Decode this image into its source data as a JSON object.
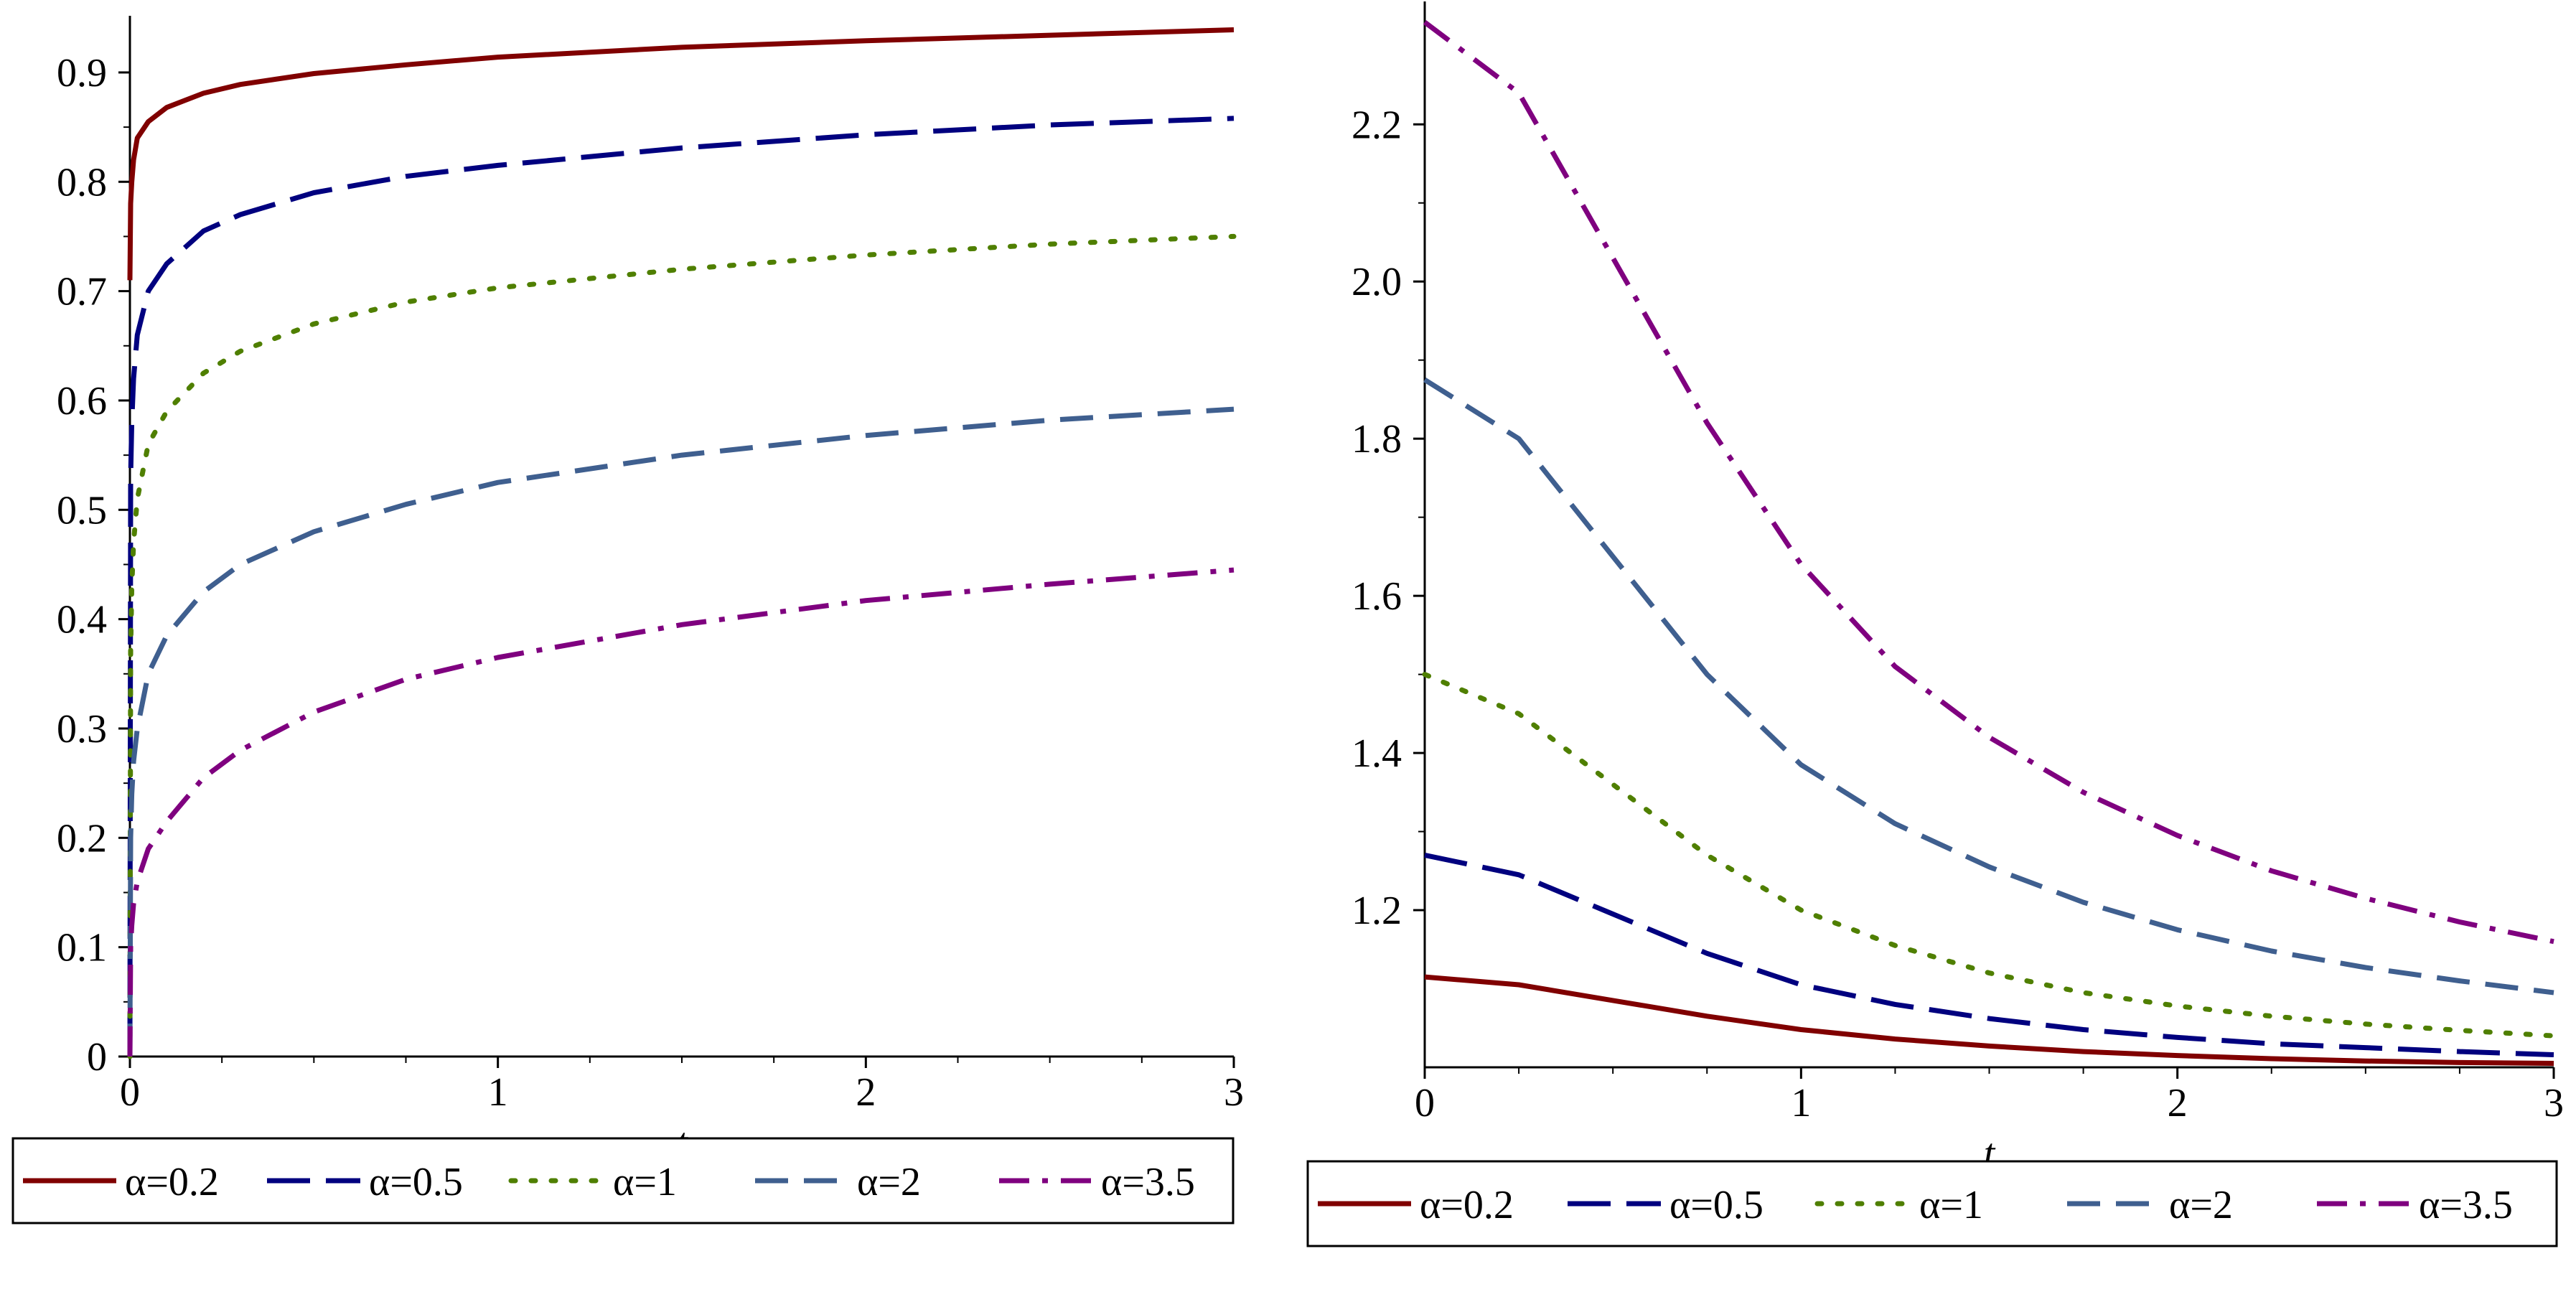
{
  "chart_data": [
    {
      "type": "line",
      "title": "",
      "xlabel": "t",
      "ylabel": "",
      "xlim": [
        0,
        3
      ],
      "ylim": [
        0,
        0.94
      ],
      "x_ticks": [
        0,
        1,
        2,
        3
      ],
      "x_tick_labels": [
        "0",
        "1",
        "2",
        "3"
      ],
      "y_ticks": [
        0,
        0.1,
        0.2,
        0.3,
        0.4,
        0.5,
        0.6,
        0.7,
        0.8,
        0.9
      ],
      "y_tick_labels": [
        "0",
        "0.1",
        "0.2",
        "0.3",
        "0.4",
        "0.5",
        "0.6",
        "0.7",
        "0.8",
        "0.9"
      ],
      "x": [
        0,
        0.002,
        0.005,
        0.01,
        0.02,
        0.05,
        0.1,
        0.2,
        0.3,
        0.5,
        0.75,
        1,
        1.5,
        2,
        2.5,
        3
      ],
      "series": [
        {
          "name": "α=0.2",
          "color": "#800000",
          "dash": "solid",
          "values": [
            0.71,
            0.78,
            0.8,
            0.82,
            0.84,
            0.855,
            0.868,
            0.881,
            0.889,
            0.899,
            0.907,
            0.914,
            0.923,
            0.929,
            0.934,
            0.939
          ]
        },
        {
          "name": "α=0.5",
          "color": "#00007f",
          "dash": "longdash",
          "values": [
            0.0,
            0.53,
            0.58,
            0.62,
            0.66,
            0.7,
            0.725,
            0.755,
            0.77,
            0.79,
            0.805,
            0.815,
            0.831,
            0.843,
            0.852,
            0.858
          ]
        },
        {
          "name": "α=1",
          "color": "#4f7f00",
          "dash": "dot",
          "values": [
            0.0,
            0.37,
            0.43,
            0.47,
            0.51,
            0.56,
            0.59,
            0.625,
            0.645,
            0.67,
            0.69,
            0.703,
            0.72,
            0.733,
            0.743,
            0.75
          ]
        },
        {
          "name": "α=2",
          "color": "#3f5f8f",
          "dash": "dash",
          "values": [
            0.0,
            0.2,
            0.24,
            0.27,
            0.3,
            0.35,
            0.385,
            0.425,
            0.45,
            0.48,
            0.505,
            0.525,
            0.55,
            0.568,
            0.582,
            0.592
          ]
        },
        {
          "name": "α=3.5",
          "color": "#7f007f",
          "dash": "dashdot",
          "values": [
            0.0,
            0.1,
            0.12,
            0.14,
            0.16,
            0.19,
            0.215,
            0.255,
            0.28,
            0.315,
            0.345,
            0.365,
            0.395,
            0.417,
            0.432,
            0.445
          ]
        }
      ],
      "legend": "bottom"
    },
    {
      "type": "line",
      "title": "",
      "xlabel": "t",
      "ylabel": "",
      "xlim": [
        0,
        3
      ],
      "ylim": [
        1.0,
        2.34
      ],
      "x_ticks": [
        0,
        1,
        2,
        3
      ],
      "x_tick_labels": [
        "0",
        "1",
        "2",
        "3"
      ],
      "y_ticks": [
        1.2,
        1.4,
        1.6,
        1.8,
        2.0,
        2.2
      ],
      "y_tick_labels": [
        "1.2",
        "1.4",
        "1.6",
        "1.8",
        "2.0",
        "2.2"
      ],
      "x": [
        0,
        0.25,
        0.5,
        0.75,
        1,
        1.25,
        1.5,
        1.75,
        2,
        2.25,
        2.5,
        2.75,
        3
      ],
      "series": [
        {
          "name": "α=0.2",
          "color": "#800000",
          "dash": "solid",
          "values": [
            1.115,
            1.105,
            1.085,
            1.065,
            1.048,
            1.036,
            1.027,
            1.02,
            1.015,
            1.011,
            1.008,
            1.006,
            1.005
          ]
        },
        {
          "name": "α=0.5",
          "color": "#00007f",
          "dash": "longdash",
          "values": [
            1.27,
            1.245,
            1.195,
            1.145,
            1.105,
            1.08,
            1.062,
            1.048,
            1.038,
            1.03,
            1.025,
            1.02,
            1.016
          ]
        },
        {
          "name": "α=1",
          "color": "#4f7f00",
          "dash": "dot",
          "values": [
            1.5,
            1.45,
            1.36,
            1.27,
            1.2,
            1.155,
            1.12,
            1.095,
            1.078,
            1.065,
            1.055,
            1.047,
            1.04
          ]
        },
        {
          "name": "α=2",
          "color": "#3f5f8f",
          "dash": "dash",
          "values": [
            1.875,
            1.8,
            1.65,
            1.5,
            1.385,
            1.31,
            1.255,
            1.21,
            1.175,
            1.148,
            1.127,
            1.11,
            1.095
          ]
        },
        {
          "name": "α=3.5",
          "color": "#7f007f",
          "dash": "dashdot",
          "values": [
            2.33,
            2.24,
            2.03,
            1.82,
            1.64,
            1.51,
            1.42,
            1.35,
            1.295,
            1.25,
            1.215,
            1.185,
            1.16
          ]
        }
      ],
      "legend": "bottom"
    }
  ]
}
